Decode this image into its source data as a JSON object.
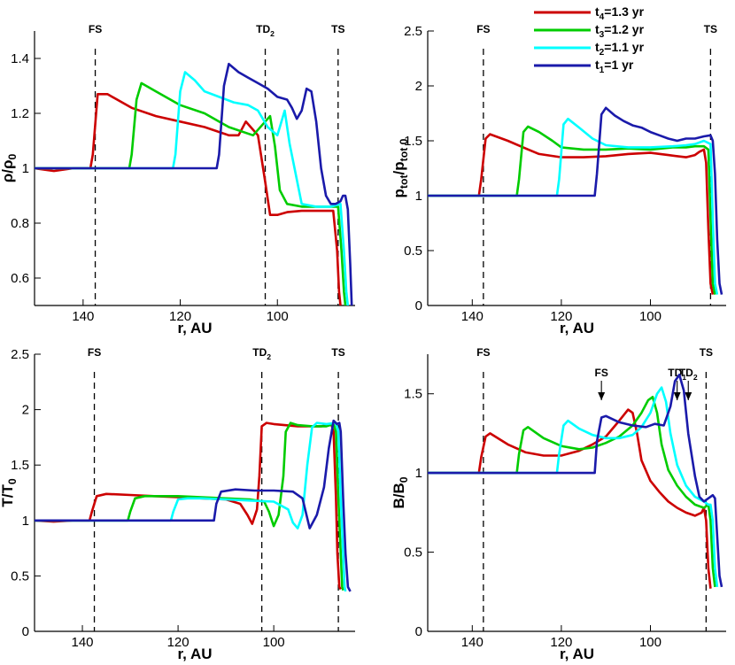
{
  "chart_data": [
    {
      "type": "line",
      "ylabel_main": "ρ/ρ",
      "ylabel_sub": "0",
      "xlabel": "r, AU",
      "xlim": [
        150,
        84
      ],
      "ylim": [
        0.5,
        1.5
      ],
      "xticks": [
        140,
        120,
        100
      ],
      "yticks": [
        {
          "v": 0.6,
          "label": "0.6"
        },
        {
          "v": 0.8,
          "label": "0.8"
        },
        {
          "v": 1.0,
          "label": "1"
        },
        {
          "v": 1.2,
          "label": "1.2"
        },
        {
          "v": 1.4,
          "label": "1.4"
        }
      ],
      "markers": [
        {
          "x": 137.5,
          "label": "FS",
          "sub": ""
        },
        {
          "x": 102.5,
          "label": "TD",
          "sub": "2"
        },
        {
          "x": 87.5,
          "label": "TS",
          "sub": ""
        }
      ],
      "series": [
        {
          "name_main": "t",
          "name_sub": "4",
          "name_rest": "=1.3 yr",
          "color": "#cc0000",
          "x": [
            150,
            146,
            142,
            138.5,
            138,
            137,
            135,
            130,
            125,
            120,
            115,
            110,
            108,
            106.5,
            105.5,
            104,
            102.5,
            101.5,
            100,
            98,
            95,
            92,
            88.5,
            87.7,
            87.3,
            87
          ],
          "y": [
            1.0,
            0.99,
            1.0,
            1.0,
            1.05,
            1.27,
            1.27,
            1.22,
            1.19,
            1.17,
            1.15,
            1.12,
            1.12,
            1.17,
            1.15,
            1.12,
            0.95,
            0.83,
            0.83,
            0.84,
            0.845,
            0.845,
            0.845,
            0.7,
            0.55,
            0.5
          ]
        },
        {
          "name_main": "t",
          "name_sub": "3",
          "name_rest": "=1.2 yr",
          "color": "#00cc00",
          "x": [
            150,
            130.5,
            130,
            129,
            128,
            125,
            120,
            115,
            110,
            105,
            102.5,
            101.5,
            100.5,
            99.5,
            98,
            95,
            92,
            89,
            87.5,
            86.8,
            86.3,
            86
          ],
          "y": [
            1.0,
            1.0,
            1.05,
            1.25,
            1.31,
            1.28,
            1.23,
            1.2,
            1.15,
            1.12,
            1.17,
            1.19,
            1.08,
            0.92,
            0.87,
            0.86,
            0.86,
            0.86,
            0.86,
            0.7,
            0.55,
            0.5
          ]
        },
        {
          "name_main": "t",
          "name_sub": "2",
          "name_rest": "=1.1 yr",
          "color": "#00ffff",
          "x": [
            150,
            121.5,
            121,
            120,
            119,
            117,
            115,
            112,
            109,
            106,
            104,
            102,
            100,
            99.5,
            98.5,
            97.5,
            95,
            92,
            89,
            87,
            86.3,
            85.8,
            85.5
          ],
          "y": [
            1.0,
            1.0,
            1.05,
            1.28,
            1.35,
            1.32,
            1.28,
            1.26,
            1.24,
            1.23,
            1.21,
            1.15,
            1.12,
            1.15,
            1.21,
            1.09,
            0.87,
            0.86,
            0.86,
            0.87,
            0.7,
            0.55,
            0.5
          ]
        },
        {
          "name_main": "t",
          "name_sub": "1",
          "name_rest": "=1 yr",
          "color": "#1a1aaa",
          "x": [
            150,
            112.5,
            112,
            111,
            110,
            108,
            106,
            104,
            102,
            100,
            98,
            97,
            96,
            95,
            94,
            93,
            92,
            91,
            90,
            89,
            88,
            87,
            86.5,
            86,
            85.5,
            85,
            84.7
          ],
          "y": [
            1.0,
            1.0,
            1.05,
            1.3,
            1.38,
            1.35,
            1.33,
            1.31,
            1.29,
            1.26,
            1.25,
            1.22,
            1.18,
            1.21,
            1.29,
            1.28,
            1.17,
            1.0,
            0.9,
            0.87,
            0.87,
            0.88,
            0.9,
            0.9,
            0.85,
            0.65,
            0.5
          ]
        }
      ]
    },
    {
      "type": "line",
      "ylabel_main": "p",
      "ylabel_sub": "tot",
      "ylabel_rest": "/p",
      "ylabel_sub2": "tot 0",
      "xlabel": "r, AU",
      "xlim": [
        150,
        83
      ],
      "ylim": [
        0,
        2.5
      ],
      "xticks": [
        140,
        120,
        100
      ],
      "yticks": [
        {
          "v": 0,
          "label": "0"
        },
        {
          "v": 0.5,
          "label": "0.5"
        },
        {
          "v": 1,
          "label": "1"
        },
        {
          "v": 1.5,
          "label": "1.5"
        },
        {
          "v": 2,
          "label": "2"
        },
        {
          "v": 2.5,
          "label": "2.5"
        }
      ],
      "markers": [
        {
          "x": 137.5,
          "label": "FS",
          "sub": ""
        },
        {
          "x": 86.5,
          "label": "TS",
          "sub": ""
        }
      ],
      "series": [
        {
          "color": "#cc0000",
          "x": [
            150,
            138.5,
            138,
            137,
            136,
            132,
            128,
            125,
            120,
            115,
            110,
            105,
            100,
            96,
            92,
            90,
            89,
            88,
            87.5,
            87,
            86.5,
            86
          ],
          "y": [
            1.0,
            1.0,
            1.15,
            1.52,
            1.56,
            1.5,
            1.43,
            1.38,
            1.35,
            1.35,
            1.36,
            1.38,
            1.39,
            1.37,
            1.35,
            1.37,
            1.4,
            1.42,
            1.3,
            0.7,
            0.2,
            0.1
          ]
        },
        {
          "color": "#00cc00",
          "x": [
            150,
            130,
            129.5,
            128.5,
            127.5,
            125,
            122,
            120,
            115,
            110,
            105,
            100,
            95,
            92,
            90,
            88,
            87,
            86.5,
            86,
            85.5
          ],
          "y": [
            1.0,
            1.0,
            1.15,
            1.58,
            1.63,
            1.58,
            1.5,
            1.44,
            1.42,
            1.42,
            1.43,
            1.42,
            1.44,
            1.44,
            1.45,
            1.45,
            1.42,
            0.8,
            0.2,
            0.1
          ]
        },
        {
          "color": "#00ffff",
          "x": [
            150,
            121,
            120.5,
            119.5,
            118.5,
            116,
            113,
            110,
            105,
            100,
            95,
            92,
            90,
            88,
            86.5,
            86,
            85.5,
            85
          ],
          "y": [
            1.0,
            1.0,
            1.15,
            1.65,
            1.7,
            1.62,
            1.52,
            1.46,
            1.44,
            1.44,
            1.45,
            1.46,
            1.47,
            1.5,
            1.47,
            0.8,
            0.2,
            0.1
          ]
        },
        {
          "color": "#1a1aaa",
          "x": [
            150,
            112.5,
            112,
            111,
            110,
            108,
            106,
            104,
            102,
            100,
            98,
            96,
            94,
            92,
            90,
            88,
            86.5,
            86,
            85.5,
            85,
            84.5,
            84
          ],
          "y": [
            1.0,
            1.0,
            1.2,
            1.74,
            1.8,
            1.73,
            1.68,
            1.64,
            1.62,
            1.58,
            1.55,
            1.52,
            1.5,
            1.52,
            1.52,
            1.54,
            1.55,
            1.5,
            1.2,
            0.6,
            0.2,
            0.1
          ]
        }
      ]
    },
    {
      "type": "line",
      "ylabel_main": "T/T",
      "ylabel_sub": "0",
      "xlabel": "r, AU",
      "xlim": [
        150,
        83
      ],
      "ylim": [
        0,
        2.5
      ],
      "xticks": [
        140,
        120,
        100
      ],
      "yticks": [
        {
          "v": 0,
          "label": "0"
        },
        {
          "v": 0.5,
          "label": "0.5"
        },
        {
          "v": 1,
          "label": "1"
        },
        {
          "v": 1.5,
          "label": "1.5"
        },
        {
          "v": 2,
          "label": "2"
        },
        {
          "v": 2.5,
          "label": "2.5"
        }
      ],
      "markers": [
        {
          "x": 137.5,
          "label": "FS",
          "sub": ""
        },
        {
          "x": 102.5,
          "label": "TD",
          "sub": "2"
        },
        {
          "x": 86.5,
          "label": "TS",
          "sub": ""
        }
      ],
      "series": [
        {
          "color": "#cc0000",
          "x": [
            150,
            146,
            142,
            138.5,
            138,
            137,
            135,
            130,
            125,
            120,
            115,
            110,
            107,
            105.5,
            104.5,
            103.5,
            103,
            102.5,
            101.5,
            100,
            95,
            90,
            88,
            87.5,
            87,
            86.7,
            86.3,
            86
          ],
          "y": [
            1.0,
            0.99,
            1.0,
            1.0,
            1.08,
            1.22,
            1.24,
            1.23,
            1.22,
            1.21,
            1.2,
            1.19,
            1.15,
            1.05,
            0.97,
            1.1,
            1.4,
            1.85,
            1.88,
            1.87,
            1.85,
            1.85,
            1.87,
            1.8,
            1.2,
            0.7,
            0.4,
            0.38
          ]
        },
        {
          "color": "#00cc00",
          "x": [
            150,
            130.5,
            130,
            129,
            127,
            125,
            120,
            115,
            110,
            105,
            102,
            101,
            100,
            99,
            98,
            97.5,
            96.5,
            95,
            92,
            89,
            87.5,
            87,
            86.5,
            86,
            85.7,
            85.5
          ],
          "y": [
            1.0,
            1.0,
            1.08,
            1.2,
            1.22,
            1.22,
            1.22,
            1.21,
            1.2,
            1.19,
            1.17,
            1.08,
            0.95,
            1.05,
            1.4,
            1.8,
            1.88,
            1.86,
            1.85,
            1.85,
            1.87,
            1.8,
            1.2,
            0.7,
            0.4,
            0.37
          ]
        },
        {
          "color": "#00ffff",
          "x": [
            150,
            121.5,
            121,
            120,
            118,
            115,
            110,
            105,
            100,
            97,
            96,
            95,
            94,
            93,
            92,
            91,
            89,
            87,
            86.5,
            86,
            85.5,
            85.2,
            85
          ],
          "y": [
            1.0,
            1.0,
            1.08,
            1.19,
            1.2,
            1.2,
            1.19,
            1.18,
            1.17,
            1.1,
            0.98,
            0.93,
            1.05,
            1.5,
            1.84,
            1.88,
            1.87,
            1.88,
            1.8,
            1.2,
            0.7,
            0.4,
            0.36
          ]
        },
        {
          "color": "#1a1aaa",
          "x": [
            150,
            112.5,
            112,
            111,
            108,
            104,
            100,
            96,
            94,
            93,
            92.5,
            91,
            89.5,
            88.5,
            87.5,
            86.8,
            86.3,
            86,
            85.5,
            85,
            84.5,
            84
          ],
          "y": [
            1.0,
            1.0,
            1.15,
            1.26,
            1.28,
            1.27,
            1.27,
            1.26,
            1.2,
            1.02,
            0.93,
            1.05,
            1.3,
            1.65,
            1.9,
            1.87,
            1.88,
            1.8,
            1.2,
            0.7,
            0.4,
            0.36
          ]
        }
      ]
    },
    {
      "type": "line",
      "ylabel_main": "B/B",
      "ylabel_sub": "0",
      "xlabel": "r, AU",
      "xlim": [
        150,
        83
      ],
      "ylim": [
        0,
        1.75
      ],
      "xticks": [
        140,
        120,
        100
      ],
      "yticks": [
        {
          "v": 0,
          "label": "0"
        },
        {
          "v": 0.5,
          "label": "0.5"
        },
        {
          "v": 1,
          "label": "1"
        },
        {
          "v": 1.5,
          "label": "1.5"
        }
      ],
      "markers": [
        {
          "x": 137.5,
          "label": "FS",
          "sub": ""
        },
        {
          "x": 87.5,
          "label": "TS",
          "sub": ""
        }
      ],
      "arrows": [
        {
          "x": 111,
          "label": "FS",
          "sub": ""
        },
        {
          "x": 94,
          "label": "TD",
          "sub": "1"
        },
        {
          "x": 91.5,
          "label": "TD",
          "sub": "2"
        }
      ],
      "series": [
        {
          "color": "#cc0000",
          "x": [
            150,
            138.5,
            138,
            137,
            136,
            132,
            128,
            124,
            120,
            116,
            113,
            110,
            107,
            105,
            104,
            103,
            102,
            100,
            98,
            96,
            94,
            92,
            90,
            88.5,
            88,
            87.5,
            87,
            86.5
          ],
          "y": [
            1.0,
            1.0,
            1.1,
            1.23,
            1.25,
            1.18,
            1.13,
            1.11,
            1.11,
            1.14,
            1.18,
            1.23,
            1.33,
            1.4,
            1.38,
            1.25,
            1.08,
            0.95,
            0.88,
            0.82,
            0.78,
            0.75,
            0.73,
            0.75,
            0.78,
            0.7,
            0.4,
            0.27
          ]
        },
        {
          "color": "#00cc00",
          "x": [
            150,
            130,
            129.5,
            128.5,
            127.5,
            124,
            120,
            116,
            113,
            110,
            107,
            104,
            102,
            100.5,
            99.5,
            98.5,
            97.5,
            96,
            94,
            92,
            90,
            88,
            87,
            86.5,
            86,
            85.5
          ],
          "y": [
            1.0,
            1.0,
            1.12,
            1.27,
            1.29,
            1.22,
            1.17,
            1.15,
            1.16,
            1.19,
            1.23,
            1.3,
            1.38,
            1.46,
            1.48,
            1.38,
            1.18,
            1.02,
            0.92,
            0.85,
            0.8,
            0.78,
            0.8,
            0.7,
            0.4,
            0.28
          ]
        },
        {
          "color": "#00ffff",
          "x": [
            150,
            121,
            120.5,
            119.5,
            118.5,
            116,
            113,
            110,
            107,
            104,
            102,
            100,
            98.5,
            97.5,
            96.5,
            95.5,
            94,
            92,
            90,
            88,
            87,
            86.5,
            86,
            85.5,
            85
          ],
          "y": [
            1.0,
            1.0,
            1.12,
            1.3,
            1.33,
            1.28,
            1.24,
            1.22,
            1.22,
            1.24,
            1.29,
            1.38,
            1.5,
            1.54,
            1.45,
            1.25,
            1.05,
            0.92,
            0.85,
            0.82,
            0.8,
            0.8,
            0.7,
            0.4,
            0.28
          ]
        },
        {
          "color": "#1a1aaa",
          "x": [
            150,
            112.5,
            112,
            111,
            110,
            107,
            104,
            101,
            99,
            97,
            95.5,
            94.5,
            93.5,
            92.5,
            91.5,
            90,
            89,
            88,
            87,
            86,
            85.5,
            85,
            84.5,
            84
          ],
          "y": [
            1.0,
            1.0,
            1.2,
            1.35,
            1.36,
            1.32,
            1.3,
            1.29,
            1.31,
            1.3,
            1.42,
            1.58,
            1.62,
            1.52,
            1.25,
            0.98,
            0.85,
            0.82,
            0.84,
            0.86,
            0.84,
            0.6,
            0.35,
            0.28
          ]
        }
      ]
    }
  ]
}
